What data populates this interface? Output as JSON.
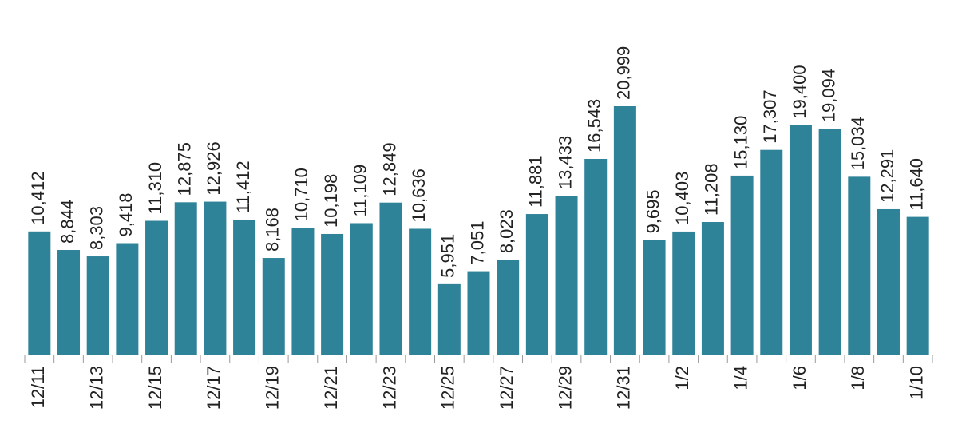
{
  "chart_data": {
    "type": "bar",
    "categories": [
      "12/11",
      null,
      "12/13",
      null,
      "12/15",
      null,
      "12/17",
      null,
      "12/19",
      null,
      "12/21",
      null,
      "12/23",
      null,
      "12/25",
      null,
      "12/27",
      null,
      "12/29",
      null,
      "12/31",
      null,
      "1/2",
      null,
      "1/4",
      null,
      "1/6",
      null,
      "1/8",
      null,
      "1/10"
    ],
    "values": [
      10412,
      8844,
      8303,
      9418,
      11310,
      12875,
      12926,
      11412,
      8168,
      10710,
      10198,
      11109,
      12849,
      10636,
      5951,
      7051,
      8023,
      11881,
      13433,
      16543,
      20999,
      9695,
      10403,
      11208,
      15130,
      17307,
      19400,
      19094,
      15034,
      12291,
      11640
    ],
    "value_labels": [
      "10,412",
      "8,844",
      "8,303",
      "9,418",
      "11,310",
      "12,875",
      "12,926",
      "11,412",
      "8,168",
      "10,710",
      "10,198",
      "11,109",
      "12,849",
      "10,636",
      "5,951",
      "7,051",
      "8,023",
      "11,881",
      "13,433",
      "16,543",
      "20,999",
      "9,695",
      "10,403",
      "11,208",
      "15,130",
      "17,307",
      "19,400",
      "19,094",
      "15,034",
      "12,291",
      "11,640"
    ],
    "color": "#2f8399"
  }
}
